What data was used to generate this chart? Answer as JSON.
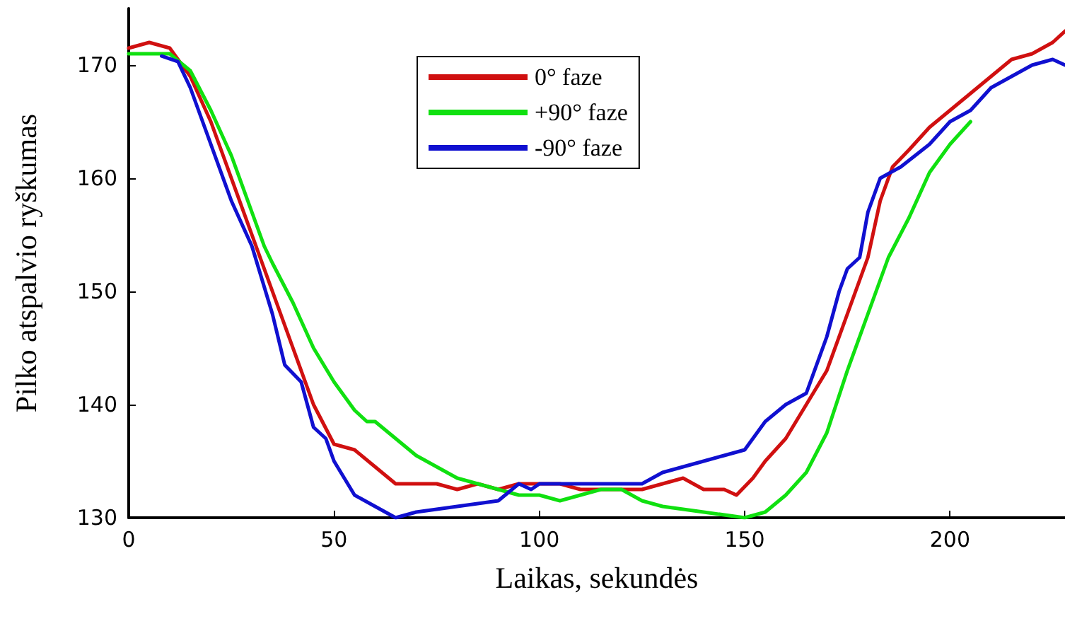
{
  "chart_data": {
    "type": "line",
    "xlabel": "Laikas, sekundės",
    "ylabel": "Pilko atspalvio ryškumas",
    "xlim": [
      0,
      228
    ],
    "xticks": [
      0,
      50,
      100,
      150,
      200
    ],
    "ylim": [
      130,
      175
    ],
    "yticks": [
      130,
      140,
      150,
      160,
      170
    ],
    "grid": false,
    "legend": "top",
    "marker": "none",
    "line_style": "solid",
    "series": [
      {
        "name": "0° faze",
        "color": "#d01010",
        "x": [
          0,
          5,
          10,
          15,
          20,
          25,
          30,
          35,
          40,
          45,
          50,
          55,
          60,
          65,
          70,
          75,
          80,
          85,
          90,
          95,
          100,
          105,
          110,
          115,
          120,
          125,
          130,
          135,
          140,
          145,
          148,
          152,
          155,
          160,
          165,
          170,
          175,
          180,
          183,
          186,
          190,
          195,
          200,
          205,
          210,
          215,
          220,
          225,
          228
        ],
        "values": [
          171.5,
          172,
          171.5,
          169,
          165,
          160,
          155,
          150,
          145,
          140,
          136.5,
          136,
          134.5,
          133,
          133,
          133,
          132.5,
          133,
          132.5,
          133,
          133,
          133,
          132.5,
          132.5,
          132.5,
          132.5,
          133,
          133.5,
          132.5,
          132.5,
          132,
          133.5,
          135,
          137,
          140,
          143,
          148,
          153,
          158,
          161,
          162.5,
          164.5,
          166,
          167.5,
          169,
          170.5,
          171,
          172,
          173
        ]
      },
      {
        "name": "+90° faze",
        "color": "#10e010",
        "x": [
          0,
          10,
          15,
          20,
          25,
          30,
          33,
          35,
          40,
          45,
          50,
          55,
          58,
          60,
          65,
          70,
          75,
          80,
          85,
          90,
          95,
          100,
          105,
          110,
          115,
          120,
          125,
          130,
          140,
          150,
          155,
          160,
          165,
          170,
          175,
          180,
          185,
          190,
          195,
          200,
          205
        ],
        "values": [
          171,
          171,
          169.5,
          166,
          162,
          157,
          154,
          152.5,
          149,
          145,
          142,
          139.5,
          138.5,
          138.5,
          137,
          135.5,
          134.5,
          133.5,
          133,
          132.5,
          132,
          132,
          131.5,
          132,
          132.5,
          132.5,
          131.5,
          131,
          130.5,
          130,
          130.5,
          132,
          134,
          137.5,
          143,
          148,
          153,
          156.5,
          160.5,
          163,
          165
        ]
      },
      {
        "name": "-90° faze",
        "color": "#1010d0",
        "x": [
          8,
          12,
          15,
          20,
          25,
          30,
          35,
          38,
          42,
          45,
          48,
          50,
          55,
          60,
          65,
          70,
          80,
          90,
          95,
          98,
          100,
          110,
          120,
          125,
          130,
          135,
          140,
          145,
          150,
          155,
          160,
          165,
          170,
          173,
          175,
          178,
          180,
          183,
          188,
          195,
          200,
          205,
          210,
          215,
          220,
          225,
          228
        ],
        "values": [
          170.8,
          170.3,
          168,
          163,
          158,
          154,
          148,
          143.5,
          142,
          138,
          137,
          135,
          132,
          131,
          130,
          130.5,
          131,
          131.5,
          133,
          132.5,
          133,
          133,
          133,
          133,
          134,
          134.5,
          135,
          135.5,
          136,
          138.5,
          140,
          141,
          146,
          150,
          152,
          153,
          157,
          160,
          161,
          163,
          165,
          166,
          168,
          169,
          170,
          170.5,
          170
        ]
      }
    ]
  }
}
